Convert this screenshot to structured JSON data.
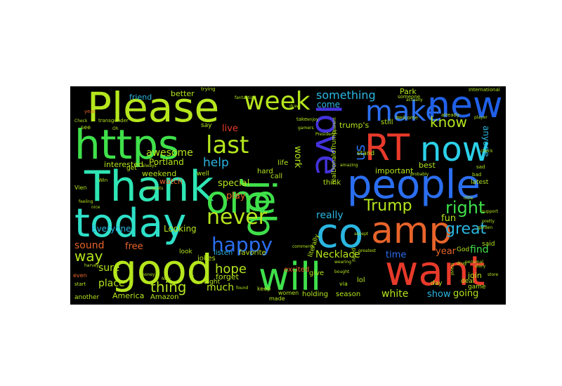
{
  "wordcloud": {
    "background": "#000000",
    "words": [
      {
        "text": "Please",
        "color": "#b5e61d"
      },
      {
        "text": "https",
        "color": "#3fe04a"
      },
      {
        "text": "Thank",
        "color": "#2ee6b4"
      },
      {
        "text": "today",
        "color": "#2ee0c8"
      },
      {
        "text": "good",
        "color": "#b5e61d"
      },
      {
        "text": "one",
        "color": "#3fe04a"
      },
      {
        "text": "week",
        "color": "#b5e61d"
      },
      {
        "text": "last",
        "color": "#b5e61d"
      },
      {
        "text": "job",
        "color": "#3fe04a"
      },
      {
        "text": "love",
        "color": "#4433dd"
      },
      {
        "text": "make",
        "color": "#2b6ef0"
      },
      {
        "text": "new",
        "color": "#2060e8"
      },
      {
        "text": "RT",
        "color": "#e83a2a"
      },
      {
        "text": "now",
        "color": "#2bd0e8"
      },
      {
        "text": "people",
        "color": "#2b6ef0"
      },
      {
        "text": "co",
        "color": "#2ab6e0"
      },
      {
        "text": "amp",
        "color": "#e8642a"
      },
      {
        "text": "want",
        "color": "#e83a2a"
      },
      {
        "text": "will",
        "color": "#3fe04a"
      },
      {
        "text": "never",
        "color": "#b5e61d"
      },
      {
        "text": "happy",
        "color": "#2b6ef0"
      },
      {
        "text": "Trump",
        "color": "#b5e61d"
      },
      {
        "text": "right",
        "color": "#3fe04a"
      },
      {
        "text": "great",
        "color": "#2ab6e0"
      },
      {
        "text": "help",
        "color": "#2ab6e0"
      },
      {
        "text": "know",
        "color": "#b5e61d"
      },
      {
        "text": "something",
        "color": "#2ab6e0"
      },
      {
        "text": "us",
        "color": "#2b6ef0"
      },
      {
        "text": "hope",
        "color": "#b5e61d"
      },
      {
        "text": "thing",
        "color": "#b5e61d"
      },
      {
        "text": "awesome",
        "color": "#b5e61d"
      },
      {
        "text": "way",
        "color": "#b5e61d"
      },
      {
        "text": "sound",
        "color": "#e8642a"
      },
      {
        "text": "free",
        "color": "#e8642a"
      },
      {
        "text": "special",
        "color": "#b5e61d"
      },
      {
        "text": "play",
        "color": "#e8642a"
      },
      {
        "text": "live",
        "color": "#e83a2a"
      },
      {
        "text": "really",
        "color": "#2ab6e0"
      },
      {
        "text": "work",
        "color": "#b5e61d"
      },
      {
        "text": "Necklace",
        "color": "#b5e61d"
      },
      {
        "text": "time",
        "color": "#2b6ef0"
      },
      {
        "text": "white",
        "color": "#b5e61d"
      },
      {
        "text": "show",
        "color": "#2ab6e0"
      },
      {
        "text": "going",
        "color": "#b5e61d"
      },
      {
        "text": "find",
        "color": "#3fe04a"
      },
      {
        "text": "year",
        "color": "#e8642a"
      },
      {
        "text": "fun",
        "color": "#b5e61d"
      },
      {
        "text": "much",
        "color": "#b5e61d"
      },
      {
        "text": "place",
        "color": "#b5e61d"
      },
      {
        "text": "sure",
        "color": "#b5e61d"
      },
      {
        "text": "Everyone",
        "color": "#2ab6e0"
      },
      {
        "text": "Looking",
        "color": "#b5e61d"
      },
      {
        "text": "anyone",
        "color": "#2ab6e0"
      },
      {
        "text": "Park",
        "color": "#b5e61d"
      },
      {
        "text": "come",
        "color": "#2ab6e0"
      },
      {
        "text": "better",
        "color": "#b5e61d"
      },
      {
        "text": "friend",
        "color": "#2ab6e0"
      },
      {
        "text": "Portland",
        "color": "#b5e61d"
      },
      {
        "text": "interested",
        "color": "#b5e61d"
      },
      {
        "text": "weekend",
        "color": "#b5e61d"
      },
      {
        "text": "watch",
        "color": "#e8642a"
      },
      {
        "text": "important",
        "color": "#b5e61d"
      },
      {
        "text": "best",
        "color": "#b5e61d"
      },
      {
        "text": "realDonaldTrump",
        "color": "#b5e61d"
      },
      {
        "text": "trump's",
        "color": "#b5e61d"
      },
      {
        "text": "listen",
        "color": "#2ab6e0"
      },
      {
        "text": "favorite",
        "color": "#b5e61d"
      },
      {
        "text": "jokes",
        "color": "#b5e61d"
      },
      {
        "text": "forget",
        "color": "#b5e61d"
      },
      {
        "text": "night",
        "color": "#b5e61d"
      },
      {
        "text": "America",
        "color": "#b5e61d"
      },
      {
        "text": "Amazon",
        "color": "#b5e61d"
      },
      {
        "text": "holding",
        "color": "#b5e61d"
      },
      {
        "text": "season",
        "color": "#b5e61d"
      },
      {
        "text": "join",
        "color": "#b5e61d"
      },
      {
        "text": "said",
        "color": "#b5e61d"
      },
      {
        "text": "God",
        "color": "#b5e61d"
      },
      {
        "text": "latest",
        "color": "#b5e61d"
      },
      {
        "text": "think",
        "color": "#b5e61d"
      },
      {
        "text": "excited",
        "color": "#e8642a"
      },
      {
        "text": "give",
        "color": "#b5e61d"
      },
      {
        "text": "call",
        "color": "#b5e61d"
      },
      {
        "text": "hard",
        "color": "#b5e61d"
      },
      {
        "text": "life",
        "color": "#b5e61d"
      },
      {
        "text": "stand",
        "color": "#b5e61d"
      },
      {
        "text": "still",
        "color": "#b5e61d"
      },
      {
        "text": "lol",
        "color": "#b5e61d"
      },
      {
        "text": "game",
        "color": "#b5e61d"
      },
      {
        "text": "deal",
        "color": "#b5e61d"
      },
      {
        "text": "say",
        "color": "#b5e61d"
      },
      {
        "text": "get",
        "color": "#b5e61d"
      },
      {
        "text": "well",
        "color": "#b5e61d"
      },
      {
        "text": "look",
        "color": "#b5e61d"
      },
      {
        "text": "keep",
        "color": "#b5e61d"
      },
      {
        "text": "made",
        "color": "#b5e61d"
      },
      {
        "text": "literally",
        "color": "#b5e61d"
      },
      {
        "text": "day",
        "color": "#b5e61d"
      },
      {
        "text": "another",
        "color": "#b5e61d"
      },
      {
        "text": "women",
        "color": "#b5e61d"
      },
      {
        "text": "trying",
        "color": "#b5e61d"
      },
      {
        "text": "someone",
        "color": "#b5e61d"
      },
      {
        "text": "via",
        "color": "#b5e61d"
      },
      {
        "text": "even",
        "color": "#e8642a"
      },
      {
        "text": "start",
        "color": "#b5e61d"
      },
      {
        "text": "Vien",
        "color": "#b5e61d"
      },
      {
        "text": "see",
        "color": "#b5e61d"
      },
      {
        "text": "year",
        "color": "#e8642a"
      },
      {
        "text": "Win",
        "color": "#b5e61d"
      },
      {
        "text": "need",
        "color": "#b5e61d"
      },
      {
        "text": "International",
        "color": "#b5e61d"
      },
      {
        "text": "sad",
        "color": "#b5e61d"
      },
      {
        "text": "personal",
        "color": "#b5e61d"
      },
      {
        "text": "bad",
        "color": "#b5e61d"
      },
      {
        "text": "already",
        "color": "#b5e61d"
      },
      {
        "text": "Welcome",
        "color": "#b5e61d"
      },
      {
        "text": "fantastic",
        "color": "#b5e61d"
      },
      {
        "text": "enjoy",
        "color": "#b5e61d"
      },
      {
        "text": "actually",
        "color": "#b5e61d"
      },
      {
        "text": "amazing",
        "color": "#b5e61d"
      },
      {
        "text": "probably",
        "color": "#b5e61d"
      },
      {
        "text": "always",
        "color": "#b5e61d"
      },
      {
        "text": "transgender",
        "color": "#b5e61d"
      },
      {
        "text": "Check",
        "color": "#b5e61d"
      },
      {
        "text": "President",
        "color": "#b5e61d"
      },
      {
        "text": "congrats",
        "color": "#b5e61d"
      },
      {
        "text": "bought",
        "color": "#b5e61d"
      },
      {
        "text": "wearing",
        "color": "#b5e61d"
      },
      {
        "text": "greatest",
        "color": "#b5e61d"
      },
      {
        "text": "store",
        "color": "#b5e61d"
      },
      {
        "text": "pretty",
        "color": "#b5e61d"
      },
      {
        "text": "little",
        "color": "#b5e61d"
      },
      {
        "text": "player",
        "color": "#b5e61d"
      },
      {
        "text": "support",
        "color": "#b5e61d"
      },
      {
        "text": "drug",
        "color": "#b5e61d"
      },
      {
        "text": "story",
        "color": "#b5e61d"
      },
      {
        "text": "garden",
        "color": "#b5e61d"
      },
      {
        "text": "travel",
        "color": "#b5e61d"
      },
      {
        "text": "money",
        "color": "#b5e61d"
      },
      {
        "text": "feeling",
        "color": "#b5e61d"
      },
      {
        "text": "found",
        "color": "#b5e61d"
      },
      {
        "text": "Now",
        "color": "#b5e61d"
      },
      {
        "text": "truly",
        "color": "#b5e61d"
      },
      {
        "text": "harvey",
        "color": "#b5e61d"
      },
      {
        "text": "Oh",
        "color": "#b5e61d"
      },
      {
        "text": "take",
        "color": "#b5e61d"
      },
      {
        "text": "gamers",
        "color": "#b5e61d"
      },
      {
        "text": "comments",
        "color": "#b5e61d"
      },
      {
        "text": "draw",
        "color": "#b5e61d"
      },
      {
        "text": "accept",
        "color": "#b5e61d"
      },
      {
        "text": "parent",
        "color": "#b5e61d"
      },
      {
        "text": "nice",
        "color": "#b5e61d"
      },
      {
        "text": "check",
        "color": "#b5e61d"
      }
    ]
  }
}
